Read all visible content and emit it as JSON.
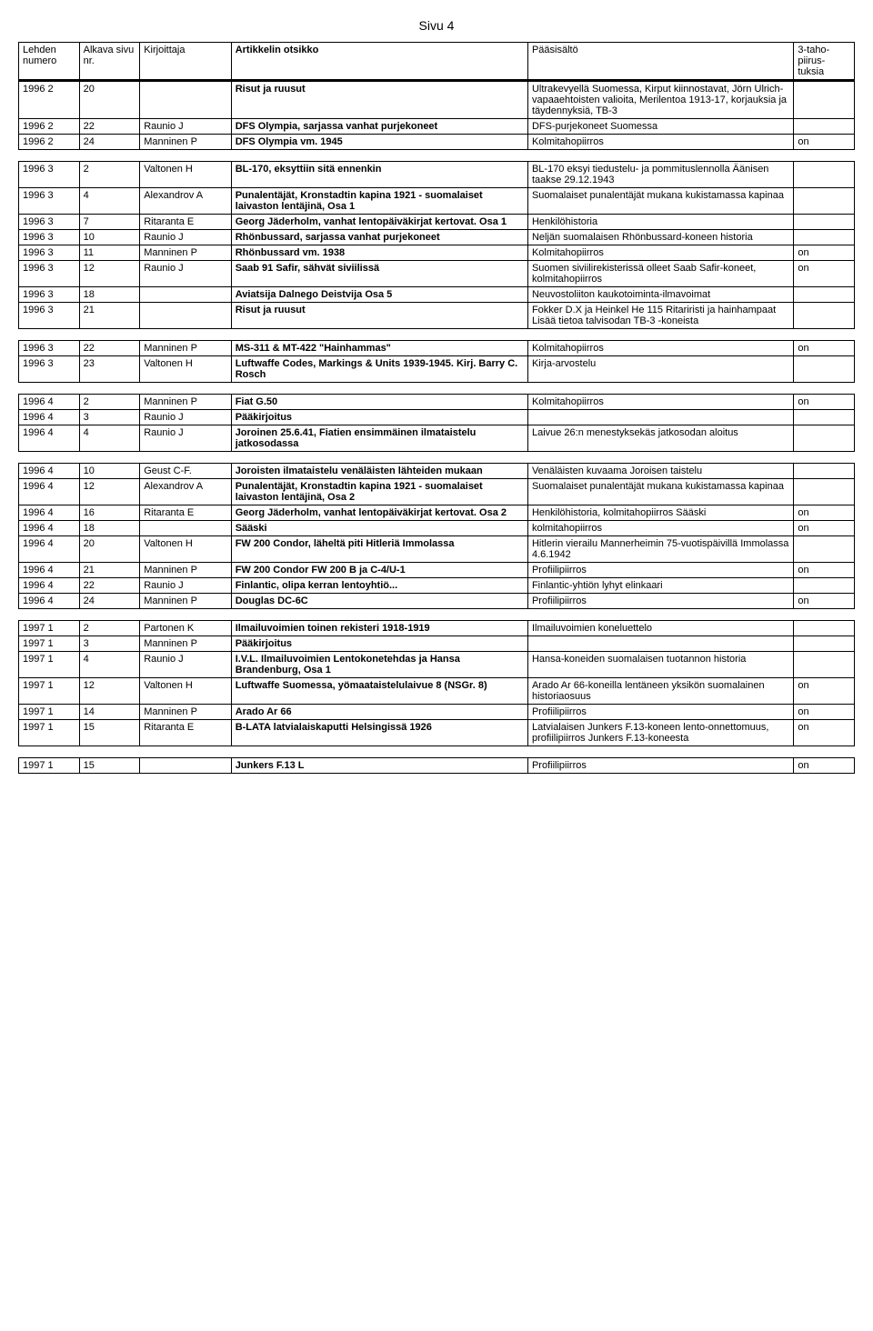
{
  "page_title": "Sivu 4",
  "header": {
    "lehden": "Lehden numero",
    "alkava": "Alkava sivu nr.",
    "kirj": "Kirjoittaja",
    "otsikko": "Artikkelin otsikko",
    "paa": "Pääsisältö",
    "taho": "3-taho-piirus-tuksia"
  },
  "sections": [
    {
      "rows": [
        {
          "lehden": "1996 2",
          "alkava": "20",
          "kirj": "",
          "otsikko": "Risut ja ruusut",
          "paa": "Ultrakevyellä Suomessa, Kirput kiinnostavat, Jörn Ulrich-vapaaehtoisten valioita, Merilentoa 1913-17, korjauksia ja täydennyksiä, TB-3",
          "taho": ""
        },
        {
          "lehden": "1996 2",
          "alkava": "22",
          "kirj": "Raunio J",
          "otsikko": "DFS Olympia, sarjassa vanhat purjekoneet",
          "paa": "DFS-purjekoneet Suomessa",
          "taho": ""
        },
        {
          "lehden": "1996 2",
          "alkava": "24",
          "kirj": "Manninen P",
          "otsikko": "DFS Olympia vm. 1945",
          "paa": "Kolmitahopiirros",
          "taho": "on"
        }
      ]
    },
    {
      "rows": [
        {
          "lehden": "1996 3",
          "alkava": "2",
          "kirj": "Valtonen H",
          "otsikko": "BL-170, eksyttiin sitä ennenkin",
          "paa": "BL-170 eksyi tiedustelu- ja pommituslennolla Äänisen taakse 29.12.1943",
          "taho": ""
        },
        {
          "lehden": "1996 3",
          "alkava": "4",
          "kirj": "Alexandrov A",
          "otsikko": "Punalentäjät, Kronstadtin kapina 1921 - suomalaiset laivaston lentäjinä, Osa 1",
          "paa": "Suomalaiset punalentäjät mukana kukistamassa kapinaa",
          "taho": ""
        },
        {
          "lehden": "1996 3",
          "alkava": "7",
          "kirj": "Ritaranta E",
          "otsikko": "Georg Jäderholm, vanhat lentopäiväkirjat kertovat. Osa 1",
          "paa": "Henkilöhistoria",
          "taho": ""
        },
        {
          "lehden": "1996 3",
          "alkava": "10",
          "kirj": "Raunio J",
          "otsikko": "Rhönbussard, sarjassa vanhat purjekoneet",
          "paa": "Neljän suomalaisen Rhönbussard-koneen historia",
          "taho": ""
        },
        {
          "lehden": "1996 3",
          "alkava": "11",
          "kirj": "Manninen P",
          "otsikko": "Rhönbussard vm. 1938",
          "paa": "Kolmitahopiirros",
          "taho": "on"
        },
        {
          "lehden": "1996 3",
          "alkava": "12",
          "kirj": "Raunio J",
          "otsikko": "Saab 91 Safir, sähvät siviilissä",
          "paa": "Suomen siviilirekisterissä olleet Saab Safir-koneet, kolmitahopiirros",
          "taho": "on"
        },
        {
          "lehden": "1996 3",
          "alkava": "18",
          "kirj": "",
          "otsikko": "Aviatsija Dalnego Deistvija Osa 5",
          "paa": "Neuvostoliiton kaukotoiminta-ilmavoimat",
          "taho": ""
        },
        {
          "lehden": "1996 3",
          "alkava": "21",
          "kirj": "",
          "otsikko": "Risut ja ruusut",
          "paa": "Fokker D.X ja Heinkel He 115 Ritariristi ja hainhampaat Lisää tietoa talvisodan TB-3 -koneista",
          "taho": ""
        }
      ]
    },
    {
      "rows": [
        {
          "lehden": "1996 3",
          "alkava": "22",
          "kirj": "Manninen P",
          "otsikko": "MS-311 & MT-422 \"Hainhammas\"",
          "paa": "Kolmitahopiirros",
          "taho": "on"
        },
        {
          "lehden": "1996 3",
          "alkava": "23",
          "kirj": "Valtonen H",
          "otsikko": "Luftwaffe Codes, Markings & Units 1939-1945. Kirj. Barry C. Rosch",
          "paa": "Kirja-arvostelu",
          "taho": ""
        }
      ]
    },
    {
      "rows": [
        {
          "lehden": "1996 4",
          "alkava": "2",
          "kirj": "Manninen P",
          "otsikko": "Fiat G.50",
          "paa": "Kolmitahopiirros",
          "taho": "on"
        },
        {
          "lehden": "1996 4",
          "alkava": "3",
          "kirj": "Raunio J",
          "otsikko": "Pääkirjoitus",
          "paa": "",
          "taho": ""
        },
        {
          "lehden": "1996 4",
          "alkava": "4",
          "kirj": "Raunio J",
          "otsikko": "Joroinen 25.6.41, Fiatien ensimmäinen ilmataistelu jatkosodassa",
          "paa": "Laivue 26:n menestyksekäs jatkosodan aloitus",
          "taho": ""
        }
      ]
    },
    {
      "rows": [
        {
          "lehden": "1996 4",
          "alkava": "10",
          "kirj": "Geust C-F.",
          "otsikko": "Joroisten ilmataistelu venäläisten lähteiden mukaan",
          "paa": "Venäläisten kuvaama Joroisen taistelu",
          "taho": ""
        },
        {
          "lehden": "1996 4",
          "alkava": "12",
          "kirj": "Alexandrov A",
          "otsikko": "Punalentäjät, Kronstadtin kapina 1921 - suomalaiset laivaston lentäjinä, Osa 2",
          "paa": "Suomalaiset punalentäjät mukana kukistamassa kapinaa",
          "taho": ""
        },
        {
          "lehden": "1996 4",
          "alkava": "16",
          "kirj": "Ritaranta E",
          "otsikko": "Georg Jäderholm, vanhat lentopäiväkirjat kertovat. Osa 2",
          "paa": "Henkilöhistoria, kolmitahopiirros Sääski",
          "taho": "on"
        },
        {
          "lehden": "1996 4",
          "alkava": "18",
          "kirj": "",
          "otsikko": "Sääski",
          "paa": "kolmitahopiirros",
          "taho": "on"
        },
        {
          "lehden": "1996 4",
          "alkava": "20",
          "kirj": "Valtonen H",
          "otsikko": "FW 200 Condor, läheltä piti Hitleriä Immolassa",
          "paa": "Hitlerin vierailu Mannerheimin 75-vuotispäivillä Immolassa 4.6.1942",
          "taho": ""
        },
        {
          "lehden": "1996 4",
          "alkava": "21",
          "kirj": "Manninen P",
          "otsikko": "FW 200 Condor FW 200 B ja C-4/U-1",
          "paa": "Profiilipiirros",
          "taho": "on"
        },
        {
          "lehden": "1996 4",
          "alkava": "22",
          "kirj": "Raunio J",
          "otsikko": "Finlantic, olipa kerran lentoyhtiö...",
          "paa": "Finlantic-yhtiön lyhyt elinkaari",
          "taho": ""
        },
        {
          "lehden": "1996 4",
          "alkava": "24",
          "kirj": "Manninen P",
          "otsikko": "Douglas DC-6C",
          "paa": "Profiilipiirros",
          "taho": "on"
        }
      ]
    },
    {
      "rows": [
        {
          "lehden": "1997 1",
          "alkava": "2",
          "kirj": "Partonen K",
          "otsikko": "Ilmailuvoimien toinen rekisteri 1918-1919",
          "paa": "Ilmailuvoimien koneluettelo",
          "taho": ""
        },
        {
          "lehden": "1997 1",
          "alkava": "3",
          "kirj": "Manninen P",
          "otsikko": "Pääkirjoitus",
          "paa": "",
          "taho": ""
        },
        {
          "lehden": "1997 1",
          "alkava": "4",
          "kirj": "Raunio J",
          "otsikko": "I.V.L. Ilmailuvoimien Lentokonetehdas ja Hansa Brandenburg, Osa 1",
          "paa": "Hansa-koneiden suomalaisen tuotannon historia",
          "taho": ""
        },
        {
          "lehden": "1997 1",
          "alkava": "12",
          "kirj": "Valtonen H",
          "otsikko": "Luftwaffe Suomessa, yömaataistelulaivue 8 (NSGr. 8)",
          "paa": "Arado Ar 66-koneilla lentäneen yksikön suomalainen historiaosuus",
          "taho": "on"
        },
        {
          "lehden": "1997 1",
          "alkava": "14",
          "kirj": "Manninen P",
          "otsikko": "Arado Ar 66",
          "paa": "Profiilipiirros",
          "taho": "on"
        },
        {
          "lehden": "1997 1",
          "alkava": "15",
          "kirj": "Ritaranta E",
          "otsikko": "B-LATA latvialaiskaputti Helsingissä 1926",
          "paa": "Latvialaisen Junkers F.13-koneen lento-onnettomuus, profiilipiirros Junkers F.13-koneesta",
          "taho": "on"
        }
      ]
    },
    {
      "rows": [
        {
          "lehden": "1997 1",
          "alkava": "15",
          "kirj": "",
          "otsikko": "Junkers F.13 L",
          "paa": "Profiilipiirros",
          "taho": "on"
        }
      ]
    }
  ]
}
